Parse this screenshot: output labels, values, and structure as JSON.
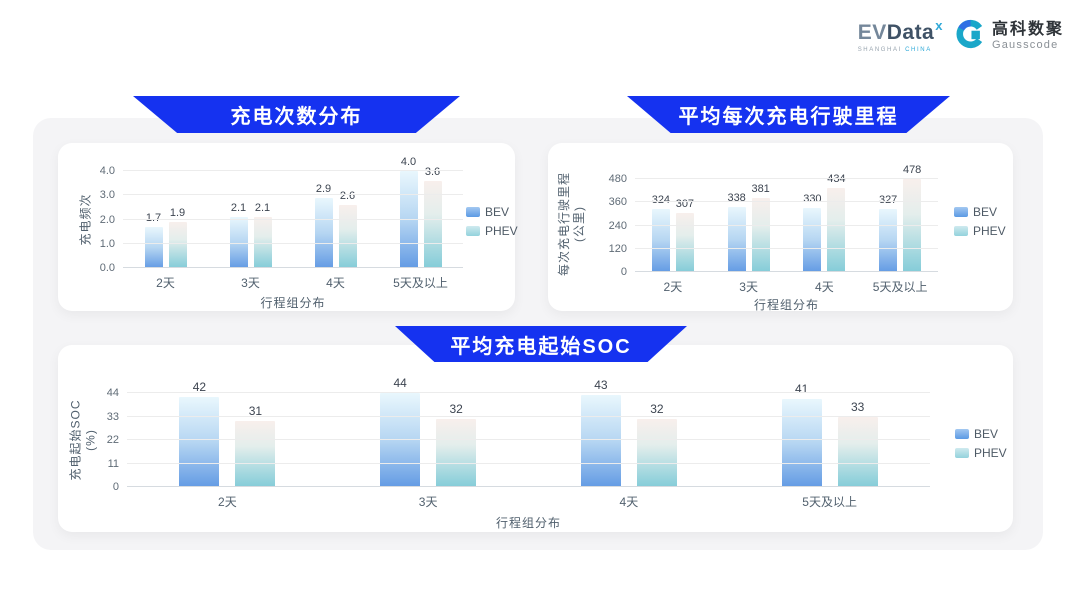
{
  "brand": {
    "evdata": {
      "word_ev": "EV",
      "word_data": "Data",
      "sup": "x",
      "tagline1": "SHANGHAI",
      "tagline2": "CHINA"
    },
    "gausscode": {
      "cn": "高科数聚",
      "en": "Gausscode"
    }
  },
  "colors": {
    "banner_blue": "#1532f0",
    "bev_bottom": "#639be4",
    "phev_bottom": "#84ccd8",
    "panel_gray": "#f4f4f6",
    "teal_accent": "#2fa9d8"
  },
  "chart_data": [
    {
      "type": "bar",
      "title": "充电次数分布",
      "ylabel": [
        "充电频次"
      ],
      "xlabel": "行程组分布",
      "categories": [
        "2天",
        "3天",
        "4天",
        "5天及以上"
      ],
      "ymax": 4.0,
      "ytick_labels": [
        "0.0",
        "1.0",
        "2.0",
        "3.0",
        "4.0"
      ],
      "grid": true,
      "legend_position": "right",
      "legend": [
        "BEV",
        "PHEV"
      ],
      "series": [
        {
          "name": "BEV",
          "values": [
            1.7,
            2.1,
            2.9,
            4.0
          ],
          "labels": [
            "1.7",
            "2.1",
            "2.9",
            "4.0"
          ]
        },
        {
          "name": "PHEV",
          "values": [
            1.9,
            2.1,
            2.6,
            3.6
          ],
          "labels": [
            "1.9",
            "2.1",
            "2.6",
            "3.6"
          ]
        }
      ]
    },
    {
      "type": "bar",
      "title": "平均每次充电行驶里程",
      "ylabel": [
        "每次充电行驶里程",
        "(公里)"
      ],
      "xlabel": "行程组分布",
      "categories": [
        "2天",
        "3天",
        "4天",
        "5天及以上"
      ],
      "ymax": 480,
      "ytick_labels": [
        "0",
        "120",
        "240",
        "360",
        "480"
      ],
      "grid": true,
      "legend_position": "right",
      "legend": [
        "BEV",
        "PHEV"
      ],
      "series": [
        {
          "name": "BEV",
          "values": [
            324,
            338,
            330,
            327
          ],
          "labels": [
            "324",
            "338",
            "330",
            "327"
          ]
        },
        {
          "name": "PHEV",
          "values": [
            307,
            381,
            434,
            478
          ],
          "labels": [
            "307",
            "381",
            "434",
            "478"
          ]
        }
      ]
    },
    {
      "type": "bar",
      "title": "平均充电起始SOC",
      "ylabel": [
        "充电起始SOC",
        "(%)"
      ],
      "xlabel": "行程组分布",
      "categories": [
        "2天",
        "3天",
        "4天",
        "5天及以上"
      ],
      "ymax": 44,
      "ytick_labels": [
        "0",
        "11",
        "22",
        "33",
        "44"
      ],
      "grid": true,
      "legend_position": "right",
      "legend": [
        "BEV",
        "PHEV"
      ],
      "series": [
        {
          "name": "BEV",
          "values": [
            42,
            44,
            43,
            41
          ],
          "labels": [
            "42",
            "44",
            "43",
            "41"
          ]
        },
        {
          "name": "PHEV",
          "values": [
            31,
            32,
            32,
            33
          ],
          "labels": [
            "31",
            "32",
            "32",
            "33"
          ]
        }
      ]
    }
  ]
}
